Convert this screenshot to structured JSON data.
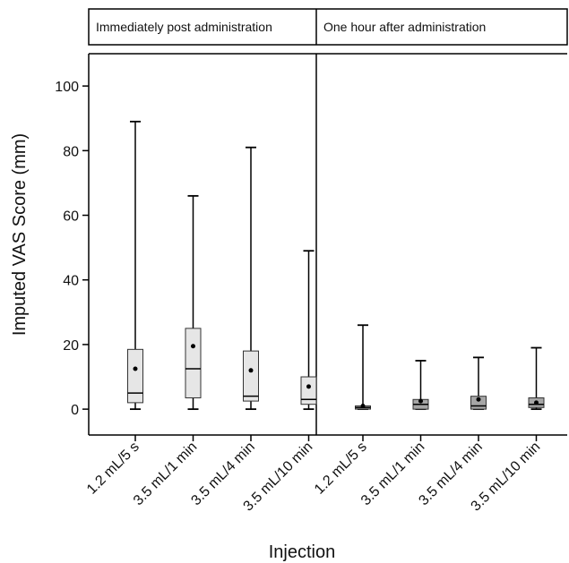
{
  "chart_data": {
    "type": "boxplot",
    "xlabel": "Injection",
    "ylabel": "Imputed VAS Score (mm)",
    "ylim": [
      -8,
      110
    ],
    "y_ticks": [
      0,
      20,
      40,
      60,
      80,
      100
    ],
    "categories": [
      "1.2 mL/5 s",
      "3.5 mL/1 min",
      "3.5 mL/4 min",
      "3.5 mL/10 min"
    ],
    "panels": [
      {
        "title": "Immediately post administration",
        "box_color": "#e6e6e6",
        "boxes": [
          {
            "category": "1.2 mL/5 s",
            "min": 0,
            "q1": 2,
            "median": 5,
            "q3": 18.5,
            "max": 89,
            "mean": 12.5
          },
          {
            "category": "3.5 mL/1 min",
            "min": 0,
            "q1": 3.5,
            "median": 12.5,
            "q3": 25,
            "max": 66,
            "mean": 19.5
          },
          {
            "category": "3.5 mL/4 min",
            "min": 0,
            "q1": 2.5,
            "median": 4,
            "q3": 18,
            "max": 81,
            "mean": 12
          },
          {
            "category": "3.5 mL/10 min",
            "min": 0,
            "q1": 1.5,
            "median": 3,
            "q3": 10,
            "max": 49,
            "mean": 7
          }
        ]
      },
      {
        "title": "One hour after administration",
        "box_color": "#a6a6a6",
        "boxes": [
          {
            "category": "1.2 mL/5 s",
            "min": 0,
            "q1": 0,
            "median": 0.5,
            "q3": 1,
            "max": 26,
            "mean": 1
          },
          {
            "category": "3.5 mL/1 min",
            "min": 0,
            "q1": 0,
            "median": 1.5,
            "q3": 3,
            "max": 15,
            "mean": 2.5
          },
          {
            "category": "3.5 mL/4 min",
            "min": 0,
            "q1": 0,
            "median": 1,
            "q3": 4,
            "max": 16,
            "mean": 3
          },
          {
            "category": "3.5 mL/10 min",
            "min": 0,
            "q1": 0.5,
            "median": 1.5,
            "q3": 3.5,
            "max": 19,
            "mean": 2
          }
        ]
      }
    ]
  }
}
